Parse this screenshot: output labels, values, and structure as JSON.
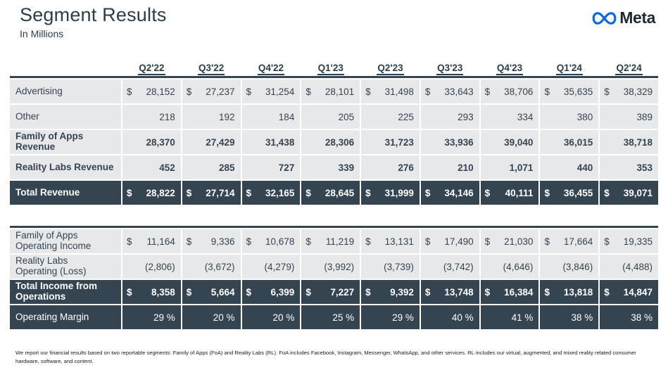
{
  "header": {
    "title": "Segment Results",
    "subtitle": "In Millions",
    "logo_text": "Meta",
    "logo_icon": "meta-infinity-icon"
  },
  "colors": {
    "dark_row": "#344450",
    "light_row": "#e7e8ea",
    "accent_blue": "#0668E1",
    "text_dark": "#2c3d49"
  },
  "columns": [
    "Q2'22",
    "Q3'22",
    "Q4'22",
    "Q1'23",
    "Q2'23",
    "Q3'23",
    "Q4'23",
    "Q1'24",
    "Q2'24"
  ],
  "revenue_table": {
    "rows": [
      {
        "label": "Advertising",
        "dollar": true,
        "bold": false,
        "dark": false,
        "values": [
          "28,152",
          "27,237",
          "31,254",
          "28,101",
          "31,498",
          "33,643",
          "38,706",
          "35,635",
          "38,329"
        ]
      },
      {
        "label": "Other",
        "dollar": false,
        "bold": false,
        "dark": false,
        "values": [
          "218",
          "192",
          "184",
          "205",
          "225",
          "293",
          "334",
          "380",
          "389"
        ]
      },
      {
        "label": "Family of Apps\nRevenue",
        "dollar": false,
        "bold": true,
        "dark": false,
        "values": [
          "28,370",
          "27,429",
          "31,438",
          "28,306",
          "31,723",
          "33,936",
          "39,040",
          "36,015",
          "38,718"
        ]
      },
      {
        "label": "Reality Labs Revenue",
        "dollar": false,
        "bold": true,
        "dark": false,
        "values": [
          "452",
          "285",
          "727",
          "339",
          "276",
          "210",
          "1,071",
          "440",
          "353"
        ]
      },
      {
        "label": "Total Revenue",
        "dollar": true,
        "bold": true,
        "dark": true,
        "values": [
          "28,822",
          "27,714",
          "32,165",
          "28,645",
          "31,999",
          "34,146",
          "40,111",
          "36,455",
          "39,071"
        ]
      }
    ]
  },
  "operations_table": {
    "rows": [
      {
        "label": "Family of Apps\nOperating Income",
        "dollar": true,
        "bold": false,
        "dark": false,
        "values": [
          "11,164",
          "9,336",
          "10,678",
          "11,219",
          "13,131",
          "17,490",
          "21,030",
          "17,664",
          "19,335"
        ]
      },
      {
        "label": "Reality Labs\nOperating (Loss)",
        "dollar": false,
        "bold": false,
        "dark": false,
        "values": [
          "(2,806)",
          "(3,672)",
          "(4,279)",
          "(3,992)",
          "(3,739)",
          "(3,742)",
          "(4,646)",
          "(3,846)",
          "(4,488)"
        ]
      },
      {
        "label": "Total Income from\nOperations",
        "dollar": true,
        "bold": true,
        "dark": true,
        "values": [
          "8,358",
          "5,664",
          "6,399",
          "7,227",
          "9,392",
          "13,748",
          "16,384",
          "13,818",
          "14,847"
        ]
      },
      {
        "label": "Operating Margin",
        "dollar": false,
        "bold": false,
        "dark": true,
        "plain": true,
        "values": [
          "29 %",
          "20 %",
          "20 %",
          "25 %",
          "29 %",
          "40 %",
          "41 %",
          "38 %",
          "38 %"
        ]
      }
    ]
  },
  "footnote": "We report our financial results based on two reportable segments: Family of Apps (FoA) and Reality Labs (RL). FoA includes Facebook, Instagram, Messenger, WhatsApp, and other services. RL includes our virtual, augmented, and mixed reality related consumer hardware, software, and content."
}
